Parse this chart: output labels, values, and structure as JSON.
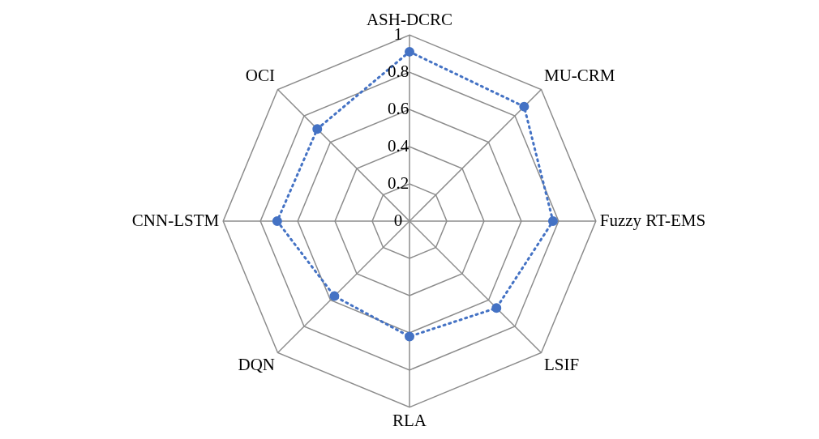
{
  "chart_data": {
    "type": "radar",
    "categories": [
      "ASH-DCRC",
      "MU-CRM",
      "Fuzzy RT-EMS",
      "LSIF",
      "RLA",
      "DQN",
      "CNN-LSTM",
      "OCI"
    ],
    "series": [
      {
        "color": "#4472c4",
        "values": [
          0.91,
          0.87,
          0.77,
          0.66,
          0.62,
          0.57,
          0.71,
          0.7
        ]
      }
    ],
    "ylim": [
      0,
      1
    ],
    "yticks": [
      0,
      0.2,
      0.4,
      0.6,
      0.8,
      1
    ],
    "grid": true,
    "legend": false,
    "marker": "circle",
    "line_style": "dotted"
  }
}
